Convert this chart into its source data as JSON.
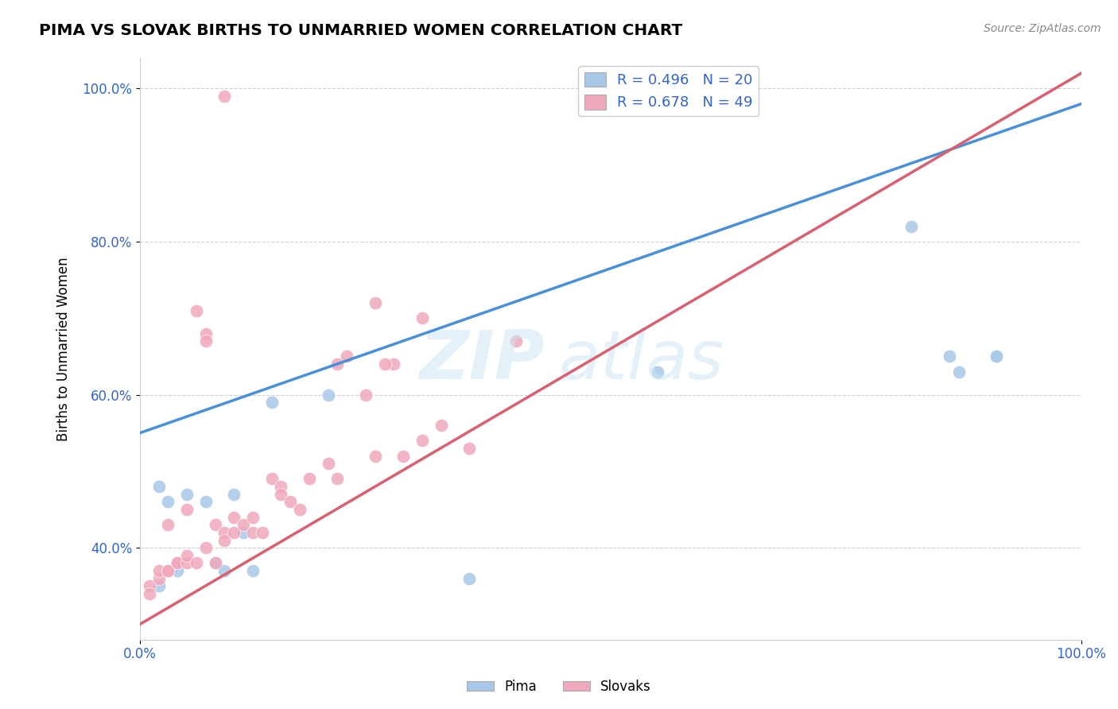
{
  "title": "PIMA VS SLOVAK BIRTHS TO UNMARRIED WOMEN CORRELATION CHART",
  "source": "Source: ZipAtlas.com",
  "ylabel": "Births to Unmarried Women",
  "xlim": [
    0,
    100
  ],
  "ylim": [
    28,
    104
  ],
  "xtick_positions": [
    0,
    100
  ],
  "xtick_labels": [
    "0.0%",
    "100.0%"
  ],
  "ytick_positions": [
    40,
    60,
    80,
    100
  ],
  "ytick_labels": [
    "40.0%",
    "60.0%",
    "80.0%",
    "100.0%"
  ],
  "pima_color": "#a8c8e8",
  "slovak_color": "#f0a8bc",
  "pima_line_color": "#4a90d9",
  "slovak_line_color": "#d96070",
  "legend_R_pima": "R = 0.496",
  "legend_N_pima": "N = 20",
  "legend_R_slovak": "R = 0.678",
  "legend_N_slovak": "N = 49",
  "background_color": "#ffffff",
  "grid_color": "#d0d0d0",
  "pima_line_start_y": 55.0,
  "pima_line_end_y": 98.0,
  "slovak_line_start_y": 30.0,
  "slovak_line_end_y": 102.0,
  "pima_x": [
    2,
    4,
    5,
    7,
    8,
    9,
    10,
    11,
    12,
    2,
    3,
    14,
    20,
    35,
    55,
    82,
    86,
    91,
    87,
    91
  ],
  "pima_y": [
    35,
    37,
    47,
    46,
    38,
    37,
    47,
    42,
    37,
    48,
    46,
    59,
    60,
    36,
    63,
    82,
    65,
    65,
    63,
    65
  ],
  "slovak_x": [
    1,
    2,
    2,
    3,
    3,
    4,
    4,
    5,
    5,
    6,
    7,
    7,
    8,
    8,
    9,
    9,
    10,
    10,
    11,
    12,
    12,
    13,
    14,
    15,
    15,
    16,
    17,
    18,
    20,
    21,
    22,
    24,
    25,
    27,
    28,
    30,
    32,
    35,
    40,
    1,
    3,
    5,
    7,
    6,
    9,
    21,
    26,
    30,
    25
  ],
  "slovak_y": [
    35,
    36,
    37,
    37,
    37,
    38,
    38,
    38,
    39,
    38,
    40,
    68,
    38,
    43,
    42,
    41,
    42,
    44,
    43,
    44,
    42,
    42,
    49,
    48,
    47,
    46,
    45,
    49,
    51,
    49,
    65,
    60,
    72,
    64,
    52,
    54,
    56,
    53,
    67,
    34,
    43,
    45,
    67,
    71,
    99,
    64,
    64,
    70,
    52
  ]
}
